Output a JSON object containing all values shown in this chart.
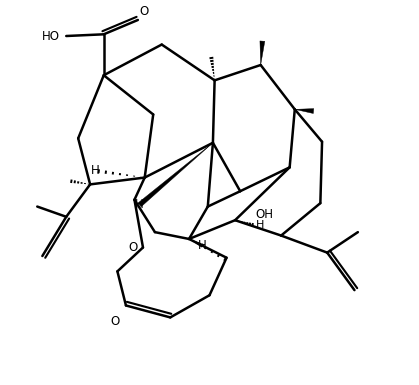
{
  "background_color": "#ffffff",
  "line_color": "#000000",
  "line_width": 1.8,
  "figsize": [
    4.19,
    3.85
  ],
  "dpi": 100,
  "xlim": [
    0,
    10
  ],
  "ylim": [
    0,
    10
  ]
}
